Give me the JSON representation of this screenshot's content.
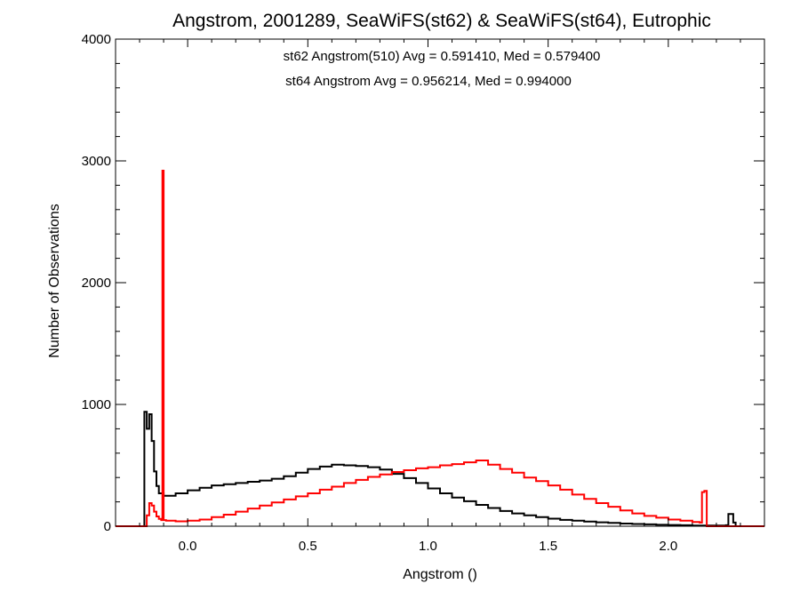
{
  "chart_data": {
    "type": "histogram",
    "title": "Angstrom, 2001289, SeaWiFS(st62) & SeaWiFS(st64), Eutrophic",
    "xlabel": "Angstrom ()",
    "ylabel": "Number of Observations",
    "xlim": [
      -0.3,
      2.4
    ],
    "ylim": [
      0,
      4000
    ],
    "x_ticks": [
      0.0,
      0.5,
      1.0,
      1.5,
      2.0
    ],
    "x_tick_labels": [
      "0.0",
      "0.5",
      "1.0",
      "1.5",
      "2.0"
    ],
    "y_ticks": [
      0,
      1000,
      2000,
      3000,
      4000
    ],
    "y_tick_labels": [
      "0",
      "1000",
      "2000",
      "3000",
      "4000"
    ],
    "grid": false,
    "annotations": [
      {
        "text": "st62 Angstrom(510) Avg = 0.591410, Med = 0.579400",
        "color": "#000000"
      },
      {
        "text": "st64 Angstrom Avg = 0.956214, Med = 0.994000",
        "color": "#ff0000"
      }
    ],
    "series": [
      {
        "color": "#000000",
        "points": [
          [
            -0.3,
            0
          ],
          [
            -0.18,
            0
          ],
          [
            -0.18,
            940
          ],
          [
            -0.17,
            800
          ],
          [
            -0.16,
            920
          ],
          [
            -0.15,
            700
          ],
          [
            -0.14,
            450
          ],
          [
            -0.13,
            330
          ],
          [
            -0.12,
            270
          ],
          [
            -0.1,
            250
          ],
          [
            -0.05,
            270
          ],
          [
            0.0,
            295
          ],
          [
            0.05,
            315
          ],
          [
            0.1,
            335
          ],
          [
            0.15,
            345
          ],
          [
            0.2,
            355
          ],
          [
            0.25,
            365
          ],
          [
            0.3,
            375
          ],
          [
            0.35,
            390
          ],
          [
            0.4,
            410
          ],
          [
            0.45,
            440
          ],
          [
            0.5,
            470
          ],
          [
            0.55,
            490
          ],
          [
            0.6,
            505
          ],
          [
            0.65,
            500
          ],
          [
            0.7,
            495
          ],
          [
            0.75,
            485
          ],
          [
            0.8,
            465
          ],
          [
            0.85,
            430
          ],
          [
            0.9,
            395
          ],
          [
            0.95,
            355
          ],
          [
            1.0,
            310
          ],
          [
            1.05,
            270
          ],
          [
            1.1,
            235
          ],
          [
            1.15,
            205
          ],
          [
            1.2,
            175
          ],
          [
            1.25,
            150
          ],
          [
            1.3,
            125
          ],
          [
            1.35,
            105
          ],
          [
            1.4,
            90
          ],
          [
            1.45,
            75
          ],
          [
            1.5,
            62
          ],
          [
            1.55,
            52
          ],
          [
            1.6,
            45
          ],
          [
            1.65,
            38
          ],
          [
            1.7,
            32
          ],
          [
            1.75,
            27
          ],
          [
            1.8,
            22
          ],
          [
            1.85,
            18
          ],
          [
            1.9,
            15
          ],
          [
            1.95,
            12
          ],
          [
            2.0,
            10
          ],
          [
            2.05,
            8
          ],
          [
            2.1,
            6
          ],
          [
            2.15,
            5
          ],
          [
            2.2,
            5
          ],
          [
            2.24,
            8
          ],
          [
            2.25,
            100
          ],
          [
            2.27,
            30
          ],
          [
            2.28,
            0
          ],
          [
            2.4,
            0
          ]
        ]
      },
      {
        "color": "#ff0000",
        "points": [
          [
            -0.3,
            0
          ],
          [
            -0.17,
            0
          ],
          [
            -0.17,
            90
          ],
          [
            -0.16,
            190
          ],
          [
            -0.15,
            170
          ],
          [
            -0.14,
            120
          ],
          [
            -0.13,
            80
          ],
          [
            -0.12,
            60
          ],
          [
            -0.11,
            50
          ],
          [
            -0.105,
            2920
          ],
          [
            -0.1,
            50
          ],
          [
            -0.09,
            45
          ],
          [
            -0.05,
            40
          ],
          [
            0.0,
            45
          ],
          [
            0.05,
            55
          ],
          [
            0.1,
            75
          ],
          [
            0.15,
            95
          ],
          [
            0.2,
            120
          ],
          [
            0.25,
            145
          ],
          [
            0.3,
            170
          ],
          [
            0.35,
            195
          ],
          [
            0.4,
            220
          ],
          [
            0.45,
            245
          ],
          [
            0.5,
            270
          ],
          [
            0.55,
            300
          ],
          [
            0.6,
            325
          ],
          [
            0.65,
            355
          ],
          [
            0.7,
            380
          ],
          [
            0.75,
            405
          ],
          [
            0.8,
            425
          ],
          [
            0.85,
            445
          ],
          [
            0.9,
            460
          ],
          [
            0.95,
            475
          ],
          [
            1.0,
            485
          ],
          [
            1.05,
            500
          ],
          [
            1.1,
            510
          ],
          [
            1.15,
            525
          ],
          [
            1.2,
            540
          ],
          [
            1.25,
            505
          ],
          [
            1.3,
            470
          ],
          [
            1.35,
            440
          ],
          [
            1.4,
            400
          ],
          [
            1.45,
            370
          ],
          [
            1.5,
            335
          ],
          [
            1.55,
            300
          ],
          [
            1.6,
            260
          ],
          [
            1.65,
            225
          ],
          [
            1.7,
            190
          ],
          [
            1.75,
            160
          ],
          [
            1.8,
            130
          ],
          [
            1.85,
            105
          ],
          [
            1.9,
            85
          ],
          [
            1.95,
            70
          ],
          [
            2.0,
            55
          ],
          [
            2.05,
            45
          ],
          [
            2.1,
            35
          ],
          [
            2.13,
            30
          ],
          [
            2.14,
            280
          ],
          [
            2.15,
            290
          ],
          [
            2.16,
            0
          ],
          [
            2.4,
            0
          ]
        ]
      }
    ]
  }
}
